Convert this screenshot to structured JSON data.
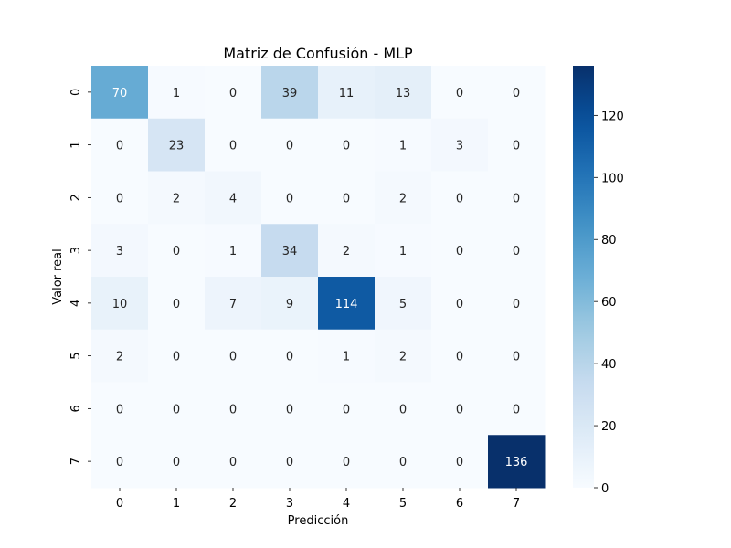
{
  "chart_data": {
    "type": "heatmap",
    "title": "Matriz de Confusión - MLP",
    "xlabel": "Predicción",
    "ylabel": "Valor real",
    "x_categories": [
      "0",
      "1",
      "2",
      "3",
      "4",
      "5",
      "6",
      "7"
    ],
    "y_categories": [
      "0",
      "1",
      "2",
      "3",
      "4",
      "5",
      "6",
      "7"
    ],
    "values": [
      [
        70,
        1,
        0,
        39,
        11,
        13,
        0,
        0
      ],
      [
        0,
        23,
        0,
        0,
        0,
        1,
        3,
        0
      ],
      [
        0,
        2,
        4,
        0,
        0,
        2,
        0,
        0
      ],
      [
        3,
        0,
        1,
        34,
        2,
        1,
        0,
        0
      ],
      [
        10,
        0,
        7,
        9,
        114,
        5,
        0,
        0
      ],
      [
        2,
        0,
        0,
        0,
        1,
        2,
        0,
        0
      ],
      [
        0,
        0,
        0,
        0,
        0,
        0,
        0,
        0
      ],
      [
        0,
        0,
        0,
        0,
        0,
        0,
        0,
        136
      ]
    ],
    "colormap": "Blues",
    "color_range": [
      0,
      136
    ],
    "colorbar_ticks": [
      0,
      20,
      40,
      60,
      80,
      100,
      120
    ]
  }
}
